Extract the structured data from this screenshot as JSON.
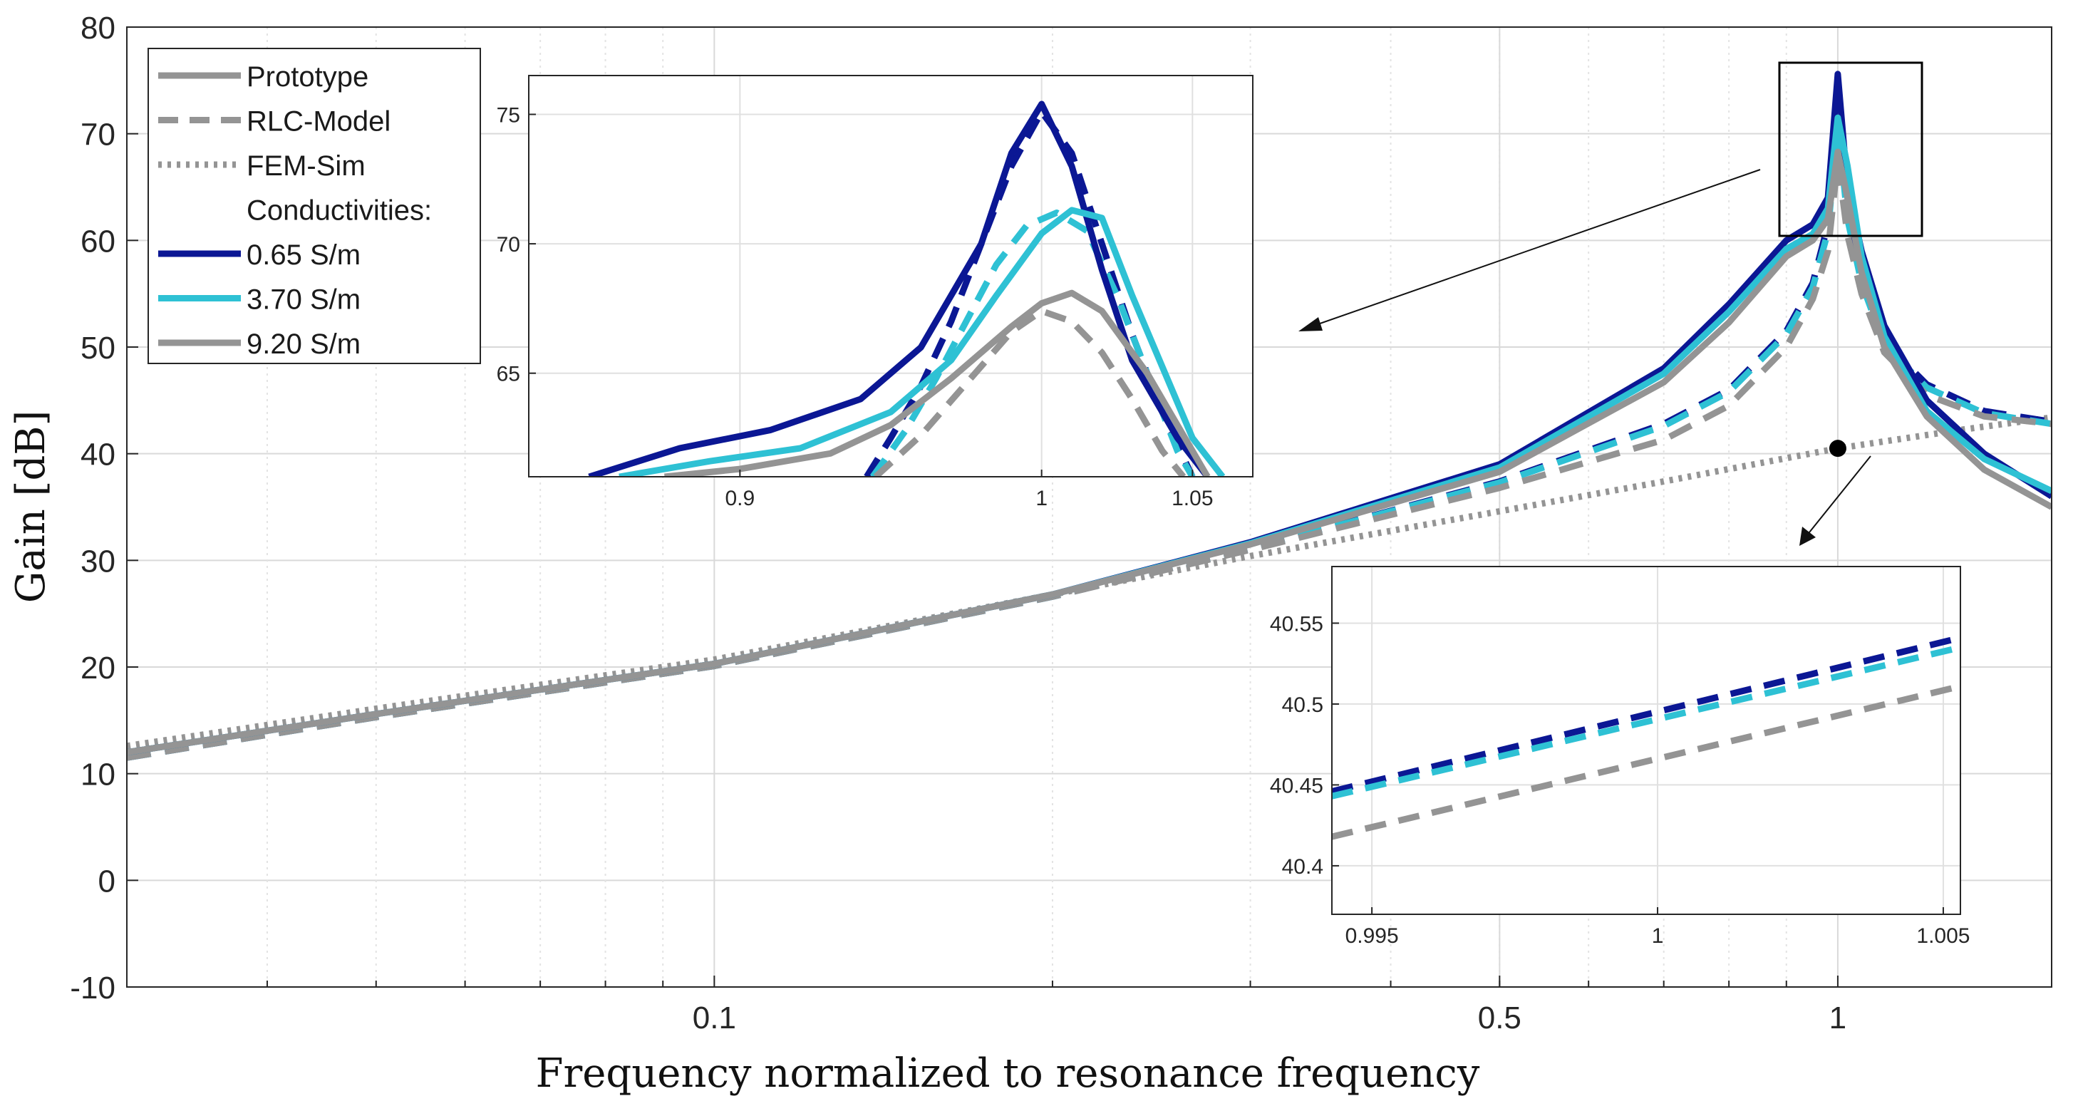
{
  "chart_data": {
    "type": "line",
    "xscale": "log",
    "xlabel": "Frequency normalized to resonance frequency",
    "ylabel": "Gain [dB]",
    "xlim": [
      0.03,
      1.55
    ],
    "ylim": [
      -10,
      80
    ],
    "yticks": [
      -10,
      0,
      10,
      20,
      30,
      40,
      50,
      60,
      70,
      80
    ],
    "xticks": [
      0.1,
      0.5,
      1
    ],
    "xtick_labels": [
      "0.1",
      "0.5",
      "1"
    ],
    "grid": true,
    "colors": {
      "c065": "#0b1794",
      "c370": "#2ec1d4",
      "c920": "#949494",
      "marker": "#000000"
    },
    "legend": {
      "placement": "top-left",
      "entries": [
        {
          "label": "Prototype",
          "style": "solid",
          "color": "#949494"
        },
        {
          "label": "RLC-Model",
          "style": "dashed",
          "color": "#949494"
        },
        {
          "label": "FEM-Sim",
          "style": "dotted",
          "color": "#949494"
        },
        {
          "label": "Conductivities:",
          "style": "none",
          "color": ""
        },
        {
          "label": "0.65 S/m",
          "style": "solid",
          "color": "#0b1794"
        },
        {
          "label": "3.70 S/m",
          "style": "solid",
          "color": "#2ec1d4"
        },
        {
          "label": "9.20 S/m",
          "style": "solid",
          "color": "#949494"
        }
      ]
    },
    "series": [
      {
        "name": "Prototype 0.65 S/m",
        "style": "solid",
        "color": "#0b1794",
        "x": [
          0.03,
          0.05,
          0.1,
          0.2,
          0.3,
          0.5,
          0.7,
          0.8,
          0.9,
          0.95,
          0.98,
          1.0,
          1.02,
          1.05,
          1.1,
          1.2,
          1.35,
          1.55
        ],
        "y": [
          12.0,
          15.6,
          20.3,
          26.8,
          31.7,
          39.0,
          48.0,
          54.0,
          60.0,
          61.5,
          64.0,
          75.6,
          65.0,
          59.0,
          52.0,
          45.0,
          40.0,
          36.0
        ]
      },
      {
        "name": "Prototype 3.70 S/m",
        "style": "solid",
        "color": "#2ec1d4",
        "x": [
          0.03,
          0.05,
          0.1,
          0.2,
          0.3,
          0.5,
          0.7,
          0.8,
          0.9,
          0.95,
          0.98,
          1.0,
          1.02,
          1.05,
          1.1,
          1.2,
          1.35,
          1.55
        ],
        "y": [
          12.0,
          15.6,
          20.3,
          26.8,
          31.6,
          38.7,
          47.5,
          53.3,
          59.2,
          60.6,
          63.0,
          71.5,
          67.0,
          58.5,
          51.0,
          44.0,
          39.5,
          36.5
        ]
      },
      {
        "name": "Prototype 9.20 S/m",
        "style": "solid",
        "color": "#949494",
        "x": [
          0.03,
          0.05,
          0.1,
          0.2,
          0.3,
          0.5,
          0.7,
          0.8,
          0.9,
          0.95,
          0.98,
          1.0,
          1.02,
          1.05,
          1.1,
          1.2,
          1.35,
          1.55
        ],
        "y": [
          12.0,
          15.6,
          20.3,
          26.8,
          31.5,
          38.3,
          46.7,
          52.3,
          58.5,
          60.0,
          62.0,
          68.3,
          64.0,
          57.0,
          50.0,
          43.5,
          38.5,
          35.0
        ]
      },
      {
        "name": "RLC-Model 0.65 S/m",
        "style": "dashed",
        "color": "#0b1794",
        "x": [
          0.03,
          0.05,
          0.1,
          0.2,
          0.3,
          0.5,
          0.7,
          0.8,
          0.9,
          0.95,
          0.98,
          1.0,
          1.02,
          1.05,
          1.1,
          1.2,
          1.35,
          1.55
        ],
        "y": [
          11.5,
          15.3,
          20.1,
          26.6,
          31.1,
          37.4,
          42.8,
          46.0,
          51.5,
          56.0,
          61.5,
          75.3,
          62.5,
          56.5,
          50.5,
          46.5,
          44.0,
          43.0
        ]
      },
      {
        "name": "RLC-Model 3.70 S/m",
        "style": "dashed",
        "color": "#2ec1d4",
        "x": [
          0.03,
          0.05,
          0.1,
          0.2,
          0.3,
          0.5,
          0.7,
          0.8,
          0.9,
          0.95,
          0.98,
          1.0,
          1.02,
          1.05,
          1.1,
          1.2,
          1.35,
          1.55
        ],
        "y": [
          11.5,
          15.3,
          20.1,
          26.6,
          31.1,
          37.3,
          42.6,
          45.8,
          51.2,
          55.6,
          60.8,
          71.0,
          62.0,
          56.0,
          50.2,
          46.2,
          43.8,
          42.8
        ]
      },
      {
        "name": "RLC-Model 9.20 S/m",
        "style": "dashed",
        "color": "#949494",
        "x": [
          0.03,
          0.05,
          0.1,
          0.2,
          0.3,
          0.5,
          0.7,
          0.8,
          0.9,
          0.95,
          0.98,
          1.0,
          1.02,
          1.05,
          1.1,
          1.2,
          1.35,
          1.55
        ],
        "y": [
          11.5,
          15.3,
          20.1,
          26.6,
          31.0,
          36.8,
          41.3,
          44.5,
          50.0,
          54.5,
          59.0,
          67.5,
          60.5,
          55.0,
          49.5,
          45.5,
          43.5,
          42.8
        ]
      },
      {
        "name": "FEM-Sim",
        "style": "dotted",
        "color": "#949494",
        "x": [
          0.03,
          0.05,
          0.1,
          0.2,
          0.3,
          0.5,
          0.7,
          1.0,
          1.3,
          1.55
        ],
        "y": [
          12.6,
          16.1,
          20.7,
          26.8,
          30.4,
          34.6,
          37.4,
          40.5,
          42.3,
          43.4
        ]
      }
    ],
    "marker_point": {
      "x": 1.0,
      "y": 40.5
    },
    "insets": [
      {
        "location": "top-center",
        "xlim": [
          0.83,
          1.07
        ],
        "ylim": [
          61.0,
          76.5
        ],
        "xticks": [
          0.9,
          1.0,
          1.05
        ],
        "xtick_labels": [
          "0.9",
          "1",
          "1.05"
        ],
        "yticks": [
          65,
          70,
          75
        ],
        "ytick_labels": [
          "65",
          "70",
          "75"
        ],
        "series": [
          {
            "name": "Prototype 0.65 S/m",
            "style": "solid",
            "color": "#0b1794",
            "x": [
              0.85,
              0.88,
              0.91,
              0.94,
              0.96,
              0.98,
              0.99,
              1.0,
              1.01,
              1.02,
              1.03,
              1.045,
              1.055
            ],
            "y": [
              61.0,
              62.1,
              62.8,
              64.0,
              66.0,
              70.0,
              73.5,
              75.4,
              73.0,
              69.0,
              65.5,
              62.5,
              61.0
            ]
          },
          {
            "name": "Prototype 3.70 S/m",
            "style": "solid",
            "color": "#2ec1d4",
            "x": [
              0.86,
              0.89,
              0.92,
              0.95,
              0.97,
              0.985,
              1.0,
              1.01,
              1.02,
              1.03,
              1.05,
              1.06
            ],
            "y": [
              61.0,
              61.6,
              62.1,
              63.5,
              65.5,
              68.0,
              70.4,
              71.3,
              71.0,
              68.0,
              62.5,
              61.0
            ]
          },
          {
            "name": "Prototype 9.20 S/m",
            "style": "solid",
            "color": "#949494",
            "x": [
              0.875,
              0.9,
              0.93,
              0.95,
              0.97,
              0.99,
              1.0,
              1.01,
              1.02,
              1.035,
              1.05,
              1.055
            ],
            "y": [
              61.0,
              61.3,
              61.9,
              63.0,
              64.8,
              66.8,
              67.7,
              68.1,
              67.4,
              65.0,
              62.0,
              61.0
            ]
          },
          {
            "name": "RLC-Model 0.65 S/m",
            "style": "dashed",
            "color": "#0b1794",
            "x": [
              0.942,
              0.95,
              0.96,
              0.97,
              0.98,
              0.99,
              1.0,
              1.01,
              1.02,
              1.03,
              1.04,
              1.05
            ],
            "y": [
              61.0,
              62.5,
              64.5,
              67.0,
              70.0,
              73.0,
              75.1,
              73.5,
              70.0,
              66.5,
              63.5,
              61.0
            ]
          },
          {
            "name": "RLC-Model 3.70 S/m",
            "style": "dashed",
            "color": "#2ec1d4",
            "x": [
              0.944,
              0.955,
              0.965,
              0.975,
              0.985,
              0.995,
              1.005,
              1.015,
              1.025,
              1.035,
              1.045,
              1.05
            ],
            "y": [
              61.0,
              62.8,
              64.8,
              67.0,
              69.2,
              70.7,
              71.2,
              70.5,
              68.0,
              65.0,
              62.0,
              61.0
            ]
          },
          {
            "name": "RLC-Model 9.20 S/m",
            "style": "dashed",
            "color": "#949494",
            "x": [
              0.945,
              0.96,
              0.975,
              0.99,
              1.0,
              1.01,
              1.02,
              1.03,
              1.04,
              1.047
            ],
            "y": [
              61.0,
              62.6,
              64.6,
              66.6,
              67.4,
              67.0,
              65.8,
              64.0,
              62.0,
              61.0
            ]
          }
        ]
      },
      {
        "location": "bottom-right",
        "xlim": [
          0.9943,
          1.0053
        ],
        "ylim": [
          40.37,
          40.585
        ],
        "xticks": [
          0.995,
          1.0,
          1.005
        ],
        "xtick_labels": [
          "0.995",
          "1",
          "1.005"
        ],
        "yticks": [
          40.4,
          40.45,
          40.5,
          40.55
        ],
        "ytick_labels": [
          "40.4",
          "40.45",
          "40.5",
          "40.55"
        ],
        "series": [
          {
            "name": "RLC 0.65 S/m",
            "style": "dashed",
            "color": "#0b1794",
            "x": [
              0.9943,
              1.0053
            ],
            "y": [
              40.446,
              40.541
            ]
          },
          {
            "name": "RLC 3.70 S/m",
            "style": "dashed",
            "color": "#2ec1d4",
            "x": [
              0.9943,
              1.0053
            ],
            "y": [
              40.443,
              40.535
            ]
          },
          {
            "name": "RLC 9.20 S/m",
            "style": "dashed",
            "color": "#949494",
            "x": [
              0.9943,
              1.0053
            ],
            "y": [
              40.418,
              40.511
            ]
          }
        ]
      }
    ]
  }
}
